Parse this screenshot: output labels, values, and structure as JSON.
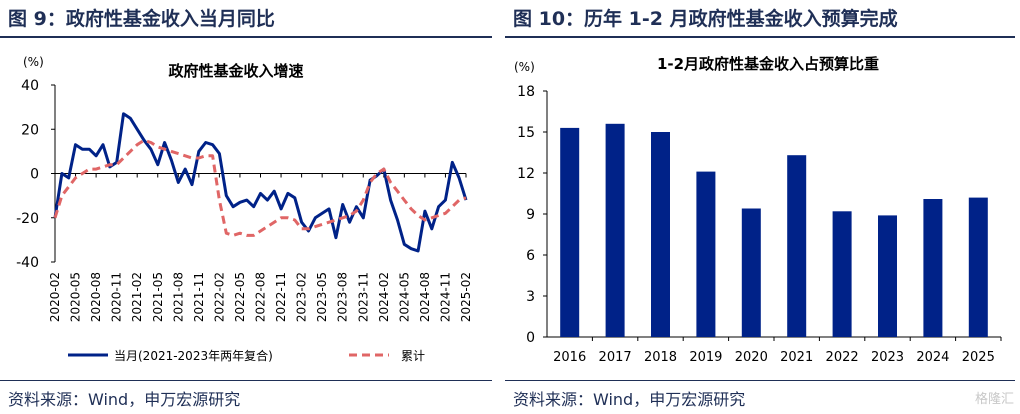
{
  "figure_left": {
    "title": "图 9：政府性基金收入当月同比",
    "source": "资料来源：Wind，申万宏源研究"
  },
  "figure_right": {
    "title": "图 10：历年 1-2 月政府性基金收入预算完成",
    "source": "资料来源：Wind，申万宏源研究"
  },
  "watermark": "格隆汇",
  "colors": {
    "navy": "#002288",
    "red": "#e06666",
    "header": "#1f2f56"
  },
  "chart_data": [
    {
      "type": "line",
      "title": "政府性基金收入增速",
      "ylabel": "(%)",
      "ylim": [
        -40,
        40
      ],
      "yticks": [
        -40,
        -20,
        0,
        20,
        40
      ],
      "x_tick_labels": [
        "2020-02",
        "2020-05",
        "2020-08",
        "2020-11",
        "2021-02",
        "2021-05",
        "2021-08",
        "2021-11",
        "2022-02",
        "2022-05",
        "2022-08",
        "2022-11",
        "2023-02",
        "2023-05",
        "2023-08",
        "2023-11",
        "2024-02",
        "2024-05",
        "2024-08",
        "2024-11",
        "2025-02"
      ],
      "legend_placement": "bottom",
      "series": [
        {
          "name": "当月(2021-2023年两年复合)",
          "color": "#002288",
          "style": "solid",
          "x": [
            "2020-02",
            "2020-03",
            "2020-04",
            "2020-05",
            "2020-06",
            "2020-07",
            "2020-08",
            "2020-09",
            "2020-10",
            "2020-11",
            "2020-12",
            "2021-01",
            "2021-02",
            "2021-03",
            "2021-04",
            "2021-05",
            "2021-06",
            "2021-07",
            "2021-08",
            "2021-09",
            "2021-10",
            "2021-11",
            "2021-12",
            "2022-01",
            "2022-02",
            "2022-03",
            "2022-04",
            "2022-05",
            "2022-06",
            "2022-07",
            "2022-08",
            "2022-09",
            "2022-10",
            "2022-11",
            "2022-12",
            "2023-01",
            "2023-02",
            "2023-03",
            "2023-04",
            "2023-05",
            "2023-06",
            "2023-07",
            "2023-08",
            "2023-09",
            "2023-10",
            "2023-11",
            "2023-12",
            "2024-01",
            "2024-02",
            "2024-03",
            "2024-04",
            "2024-05",
            "2024-06",
            "2024-07",
            "2024-08",
            "2024-09",
            "2024-10",
            "2024-11",
            "2024-12",
            "2025-01",
            "2025-02"
          ],
          "values": [
            -20,
            0,
            -2,
            13,
            11,
            11,
            8,
            13,
            3,
            5,
            27,
            25,
            20,
            15,
            11,
            4,
            14,
            6,
            -4,
            2,
            -5,
            10,
            14,
            13,
            9,
            -10,
            -15,
            -13,
            -12,
            -15,
            -9,
            -12,
            -8,
            -16,
            -9,
            -11,
            -22,
            -26,
            -20,
            -18,
            -16,
            -29,
            -14,
            -22,
            -15,
            -20,
            -3,
            -1,
            2,
            -12,
            -21,
            -32,
            -34,
            -35,
            -17,
            -25,
            -15,
            -12,
            5,
            -2,
            -12
          ]
        },
        {
          "name": "累计",
          "color": "#e06666",
          "style": "dashed",
          "x": [
            "2020-02",
            "2020-03",
            "2020-04",
            "2020-05",
            "2020-06",
            "2020-07",
            "2020-08",
            "2020-09",
            "2020-10",
            "2020-11",
            "2020-12",
            "2021-01",
            "2021-02",
            "2021-03",
            "2021-04",
            "2021-05",
            "2021-06",
            "2021-07",
            "2021-08",
            "2021-09",
            "2021-10",
            "2021-11",
            "2021-12",
            "2022-01",
            "2022-02",
            "2022-03",
            "2022-04",
            "2022-05",
            "2022-06",
            "2022-07",
            "2022-08",
            "2022-09",
            "2022-10",
            "2022-11",
            "2022-12",
            "2023-01",
            "2023-02",
            "2023-03",
            "2023-04",
            "2023-05",
            "2023-06",
            "2023-07",
            "2023-08",
            "2023-09",
            "2023-10",
            "2023-11",
            "2023-12",
            "2024-01",
            "2024-02",
            "2024-03",
            "2024-04",
            "2024-05",
            "2024-06",
            "2024-07",
            "2024-08",
            "2024-09",
            "2024-10",
            "2024-11",
            "2024-12",
            "2025-01",
            "2025-02"
          ],
          "values": [
            -20,
            -10,
            -6,
            -2,
            0,
            2,
            2,
            3,
            4,
            4,
            7,
            10,
            13,
            15,
            14,
            12,
            11,
            10,
            9,
            8,
            7,
            7,
            8,
            8,
            -12,
            -27,
            -28,
            -27,
            -28,
            -28,
            -26,
            -24,
            -22,
            -20,
            -20,
            -21,
            -25,
            -25,
            -24,
            -23,
            -22,
            -21,
            -20,
            -19,
            -17,
            -12,
            -4,
            0,
            2,
            -4,
            -8,
            -12,
            -16,
            -19,
            -21,
            -20,
            -19,
            -18,
            -15,
            -12,
            -11
          ]
        }
      ]
    },
    {
      "type": "bar",
      "title": "1-2月政府性基金收入占预算比重",
      "ylabel": "(%)",
      "ylim": [
        0,
        18
      ],
      "yticks": [
        0,
        3,
        6,
        9,
        12,
        15,
        18
      ],
      "categories": [
        "2016",
        "2017",
        "2018",
        "2019",
        "2020",
        "2021",
        "2022",
        "2023",
        "2024",
        "2025"
      ],
      "values": [
        15.3,
        15.6,
        15.0,
        12.1,
        9.4,
        13.3,
        9.2,
        8.9,
        10.1,
        10.2
      ],
      "color": "#002288"
    }
  ]
}
